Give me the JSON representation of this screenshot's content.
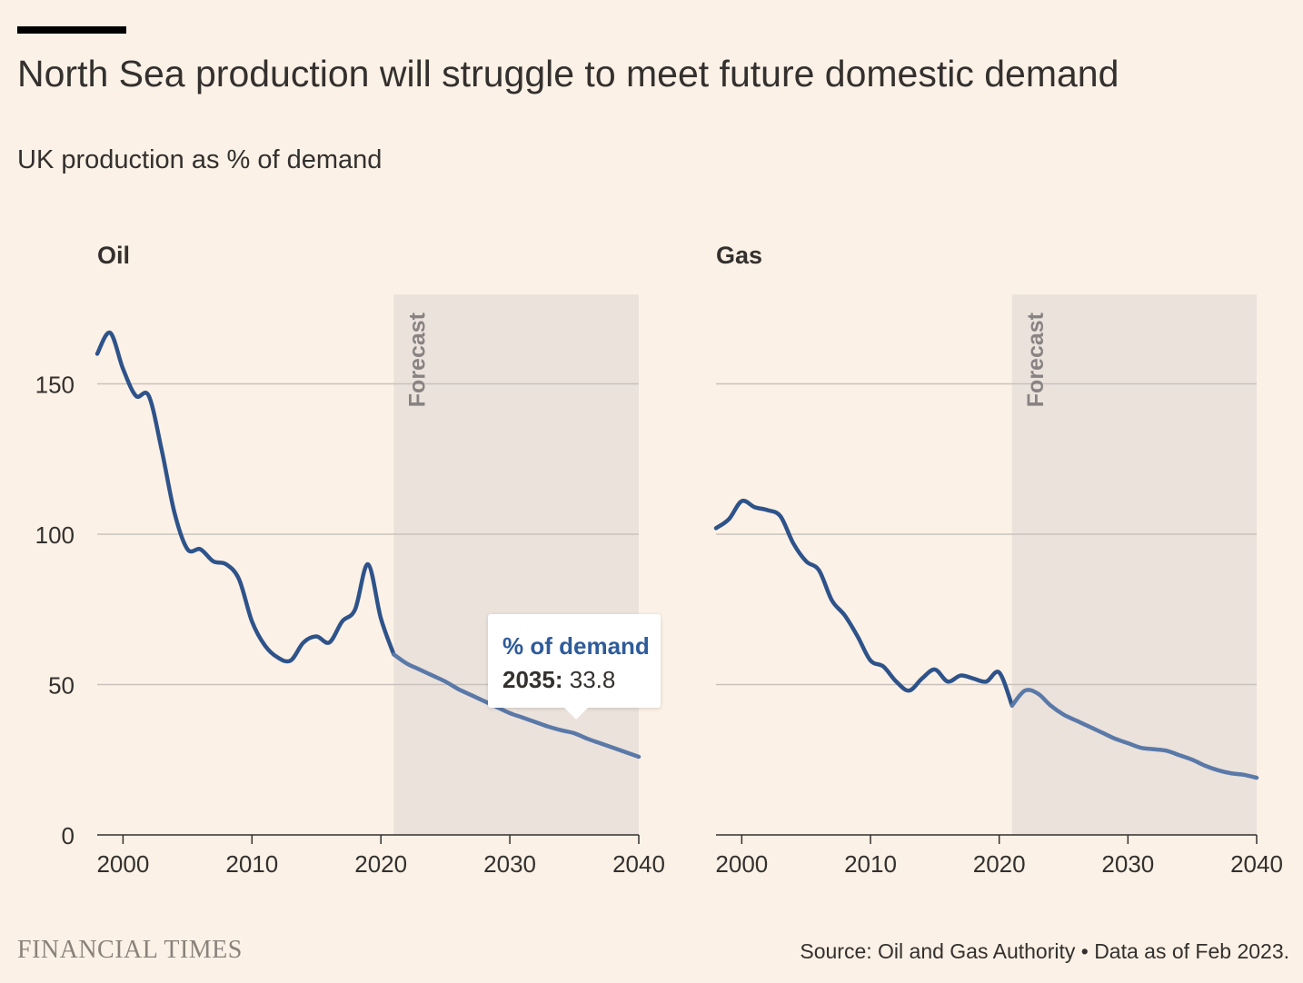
{
  "header": {
    "title": "North Sea production will struggle to meet future domestic demand",
    "subtitle": "UK production as % of demand"
  },
  "footer": {
    "brand": "FINANCIAL TIMES",
    "source": "Source: Oil and Gas Authority • Data as of Feb 2023."
  },
  "forecast_label": "Forecast",
  "tooltip": {
    "series_label": "% of demand",
    "year": "2035:",
    "value": "33.8"
  },
  "colors": {
    "background": "#FCF1E6",
    "line": "#2E538A",
    "forecast_line": "#5A79A8",
    "forecast_shade": "#EBE2DC",
    "gridline": "#C9C2BC",
    "tooltip_head": "#2E5B9A"
  },
  "chart_data": [
    {
      "type": "line",
      "title": "Oil",
      "xlim": [
        1998,
        2040
      ],
      "ylim": [
        0,
        170
      ],
      "x_ticks": [
        2000,
        2010,
        2020,
        2030,
        2040
      ],
      "y_ticks": [
        0,
        50,
        100,
        150
      ],
      "forecast_start": 2021,
      "grid": true,
      "series": [
        {
          "x": [
            1998,
            1999,
            2000,
            2001,
            2002,
            2003,
            2004,
            2005,
            2006,
            2007,
            2008,
            2009,
            2010,
            2011,
            2012,
            2013,
            2014,
            2015,
            2016,
            2017,
            2018,
            2019,
            2020,
            2021,
            2022,
            2023,
            2024,
            2025,
            2026,
            2027,
            2028,
            2029,
            2030,
            2031,
            2032,
            2033,
            2034,
            2035,
            2036,
            2037,
            2038,
            2039,
            2040
          ],
          "values": [
            160,
            167,
            155,
            146,
            146,
            128,
            107,
            95,
            95,
            91,
            90,
            85,
            71,
            63,
            59,
            58,
            64,
            66,
            64,
            71,
            75,
            90,
            72,
            60,
            57,
            55,
            53,
            51,
            48.5,
            46.5,
            44.5,
            42.5,
            40.5,
            39,
            37.5,
            36,
            34.8,
            33.8,
            32,
            30.5,
            29,
            27.5,
            26
          ]
        }
      ]
    },
    {
      "type": "line",
      "title": "Gas",
      "xlim": [
        1998,
        2040
      ],
      "ylim": [
        0,
        170
      ],
      "x_ticks": [
        2000,
        2010,
        2020,
        2030,
        2040
      ],
      "y_ticks": [
        0,
        50,
        100,
        150
      ],
      "forecast_start": 2021,
      "grid": true,
      "series": [
        {
          "x": [
            1998,
            1999,
            2000,
            2001,
            2002,
            2003,
            2004,
            2005,
            2006,
            2007,
            2008,
            2009,
            2010,
            2011,
            2012,
            2013,
            2014,
            2015,
            2016,
            2017,
            2018,
            2019,
            2020,
            2021,
            2022,
            2023,
            2024,
            2025,
            2026,
            2027,
            2028,
            2029,
            2030,
            2031,
            2032,
            2033,
            2034,
            2035,
            2036,
            2037,
            2038,
            2039,
            2040
          ],
          "values": [
            102,
            105,
            111,
            109,
            108,
            106,
            97,
            91,
            88,
            78,
            73,
            66,
            58,
            56,
            51,
            48,
            52,
            55,
            51,
            53,
            52,
            51,
            54,
            43,
            48,
            47,
            43,
            40,
            38,
            36,
            34,
            32,
            30.5,
            29,
            28.5,
            28,
            26.5,
            25,
            23,
            21.5,
            20.5,
            20,
            19
          ]
        }
      ]
    }
  ]
}
